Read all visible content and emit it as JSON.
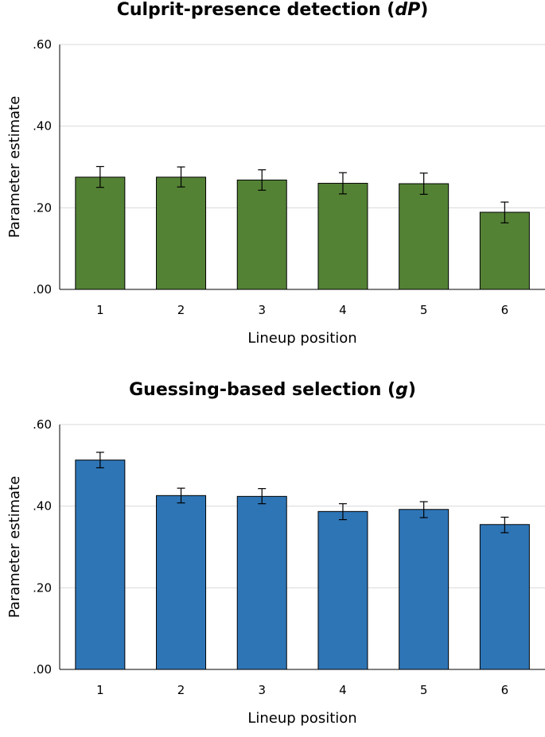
{
  "chart_data": [
    {
      "type": "bar",
      "title_main": "Culprit-presence detection (",
      "title_symbol": "dP",
      "title_end": ")",
      "xlabel": "Lineup position",
      "ylabel": "Parameter estimate",
      "categories": [
        "1",
        "2",
        "3",
        "4",
        "5",
        "6"
      ],
      "values": [
        0.275,
        0.275,
        0.268,
        0.26,
        0.259,
        0.189
      ],
      "error_low": [
        0.25,
        0.251,
        0.243,
        0.234,
        0.233,
        0.163
      ],
      "error_high": [
        0.301,
        0.3,
        0.293,
        0.286,
        0.285,
        0.214
      ],
      "ylim": [
        0,
        0.6
      ],
      "yticks": [
        0,
        0.2,
        0.4,
        0.6
      ],
      "ytick_labels": [
        ".00",
        ".20",
        ".40",
        ".60"
      ],
      "grid": true,
      "bar_color": "#548235"
    },
    {
      "type": "bar",
      "title_main": "Guessing-based selection (",
      "title_symbol": "g",
      "title_end": ")",
      "xlabel": "Lineup position",
      "ylabel": "Parameter estimate",
      "categories": [
        "1",
        "2",
        "3",
        "4",
        "5",
        "6"
      ],
      "values": [
        0.513,
        0.426,
        0.424,
        0.387,
        0.392,
        0.355
      ],
      "error_low": [
        0.494,
        0.408,
        0.406,
        0.367,
        0.372,
        0.335
      ],
      "error_high": [
        0.532,
        0.444,
        0.443,
        0.406,
        0.411,
        0.373
      ],
      "ylim": [
        0,
        0.6
      ],
      "yticks": [
        0,
        0.2,
        0.4,
        0.6
      ],
      "ytick_labels": [
        ".00",
        ".20",
        ".40",
        ".60"
      ],
      "grid": true,
      "bar_color": "#2e75b6"
    }
  ]
}
